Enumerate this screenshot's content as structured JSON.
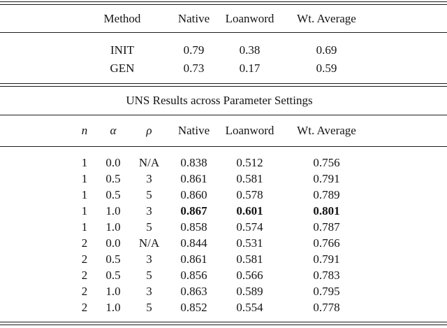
{
  "table1": {
    "columns": {
      "method": "Method",
      "native": "Native",
      "loanword": "Loanword",
      "wt_average": "Wt. Average"
    },
    "rows": [
      {
        "method": "INIT",
        "native": "0.79",
        "loanword": "0.38",
        "wt_average": "0.69"
      },
      {
        "method": "GEN",
        "native": "0.73",
        "loanword": "0.17",
        "wt_average": "0.59"
      }
    ]
  },
  "table2": {
    "title": "UNS Results across Parameter Settings",
    "columns": {
      "n": "n",
      "alpha": "α",
      "rho": "ρ",
      "native": "Native",
      "loanword": "Loanword",
      "wt_average": "Wt. Average"
    },
    "bold_row_index": 3,
    "rows": [
      {
        "n": "1",
        "alpha": "0.0",
        "rho": "N/A",
        "native": "0.838",
        "loanword": "0.512",
        "wt_average": "0.756"
      },
      {
        "n": "1",
        "alpha": "0.5",
        "rho": "3",
        "native": "0.861",
        "loanword": "0.581",
        "wt_average": "0.791"
      },
      {
        "n": "1",
        "alpha": "0.5",
        "rho": "5",
        "native": "0.860",
        "loanword": "0.578",
        "wt_average": "0.789"
      },
      {
        "n": "1",
        "alpha": "1.0",
        "rho": "3",
        "native": "0.867",
        "loanword": "0.601",
        "wt_average": "0.801"
      },
      {
        "n": "1",
        "alpha": "1.0",
        "rho": "5",
        "native": "0.858",
        "loanword": "0.574",
        "wt_average": "0.787"
      },
      {
        "n": "2",
        "alpha": "0.0",
        "rho": "N/A",
        "native": "0.844",
        "loanword": "0.531",
        "wt_average": "0.766"
      },
      {
        "n": "2",
        "alpha": "0.5",
        "rho": "3",
        "native": "0.861",
        "loanword": "0.581",
        "wt_average": "0.791"
      },
      {
        "n": "2",
        "alpha": "0.5",
        "rho": "5",
        "native": "0.856",
        "loanword": "0.566",
        "wt_average": "0.783"
      },
      {
        "n": "2",
        "alpha": "1.0",
        "rho": "3",
        "native": "0.863",
        "loanword": "0.589",
        "wt_average": "0.795"
      },
      {
        "n": "2",
        "alpha": "1.0",
        "rho": "5",
        "native": "0.852",
        "loanword": "0.554",
        "wt_average": "0.778"
      }
    ]
  }
}
